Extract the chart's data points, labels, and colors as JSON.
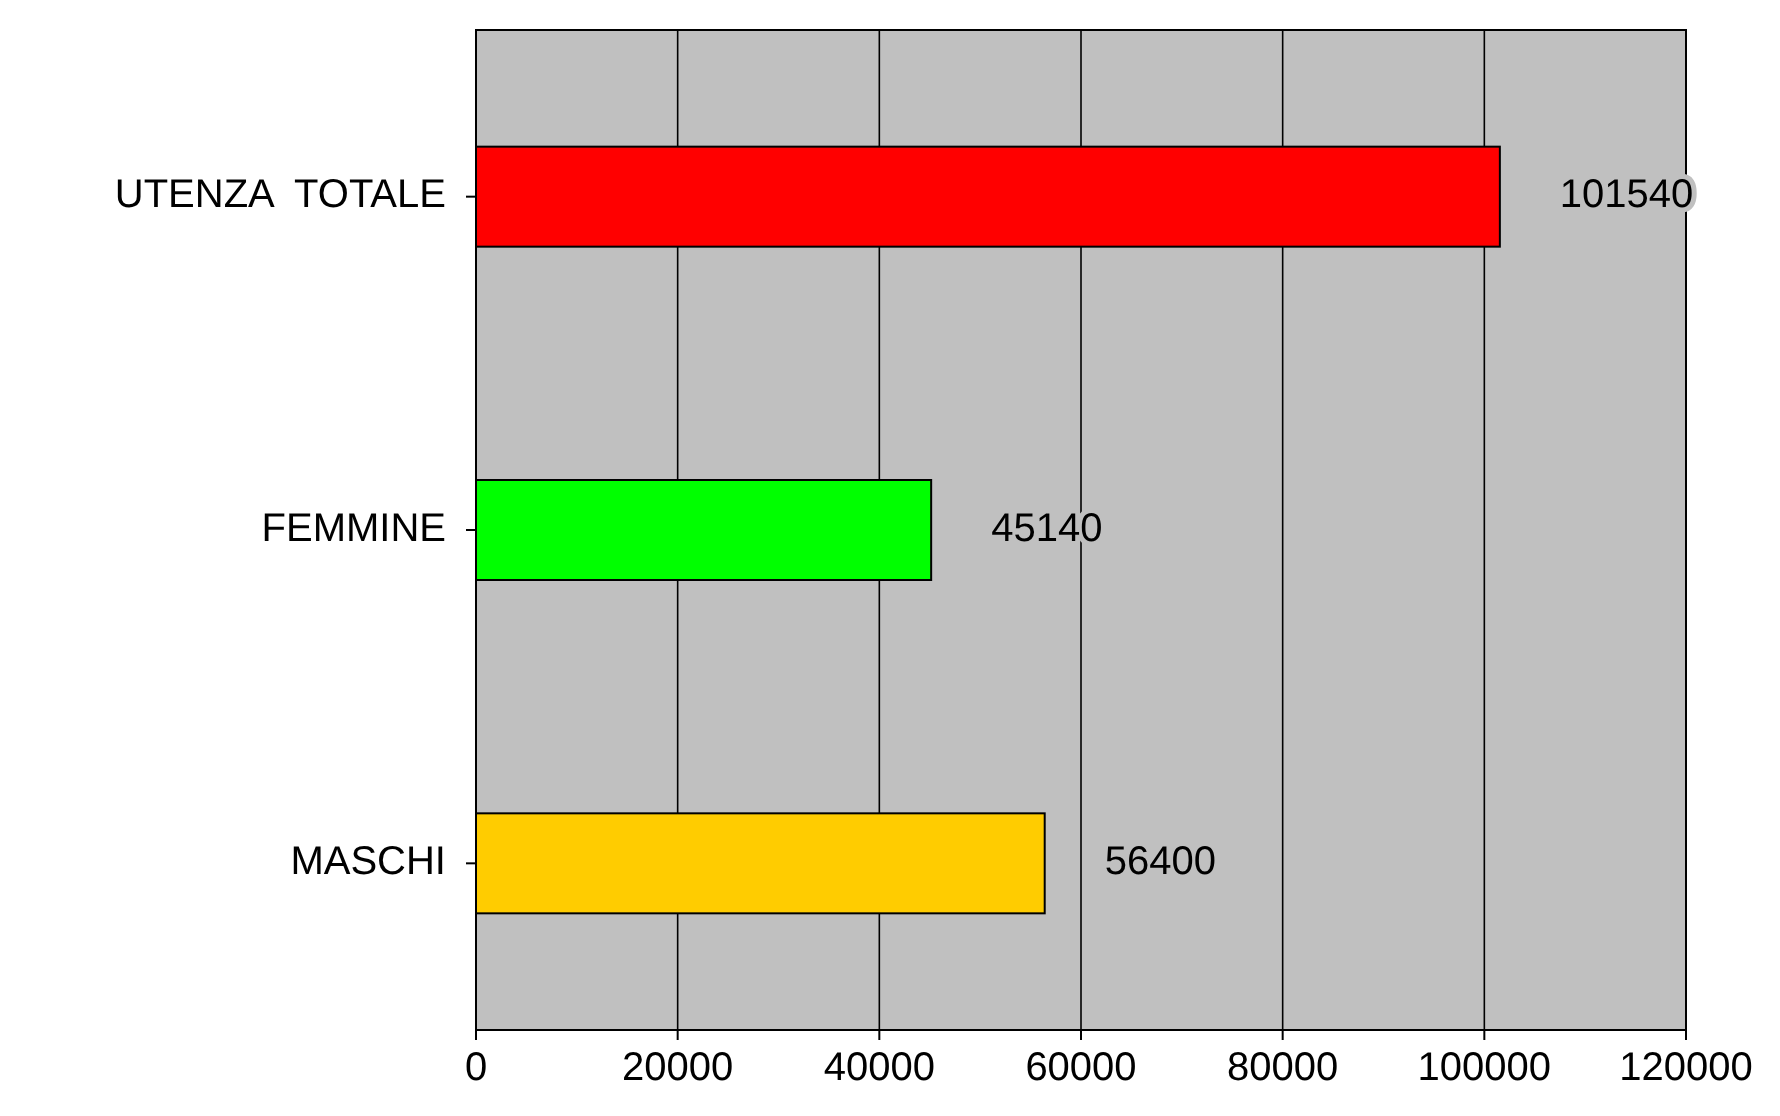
{
  "chart_data": {
    "type": "bar",
    "orientation": "horizontal",
    "categories": [
      "UTENZA  TOTALE",
      "FEMMINE",
      "MASCHI"
    ],
    "values": [
      101540,
      45140,
      56400
    ],
    "colors": [
      "#ff0000",
      "#00ff00",
      "#ffcc00"
    ],
    "xlim": [
      0,
      120000
    ],
    "xticks": [
      0,
      20000,
      40000,
      60000,
      80000,
      100000,
      120000
    ],
    "grid": "x",
    "data_labels": true
  }
}
